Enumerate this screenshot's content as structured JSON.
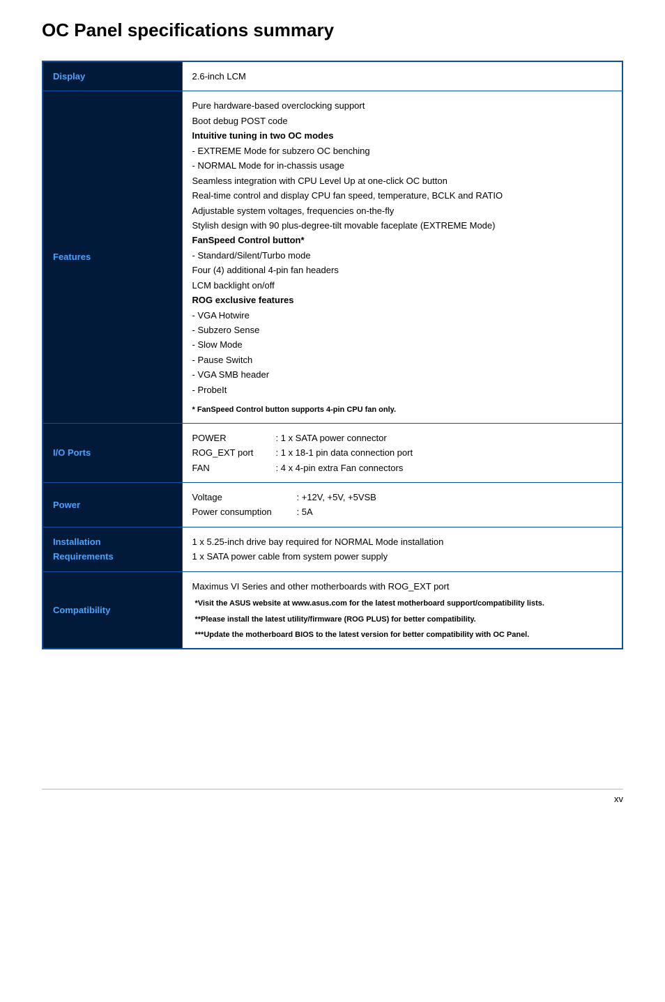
{
  "title": "OC Panel specifications summary",
  "rows": {
    "display": {
      "label": "Display",
      "value": "2.6-inch LCM"
    },
    "features": {
      "label": "Features",
      "lines": [
        {
          "text": "Pure hardware-based overclocking support"
        },
        {
          "text": "Boot debug POST code"
        },
        {
          "text": "Intuitive tuning in two OC modes",
          "bold": true
        },
        {
          "text": "- EXTREME Mode for subzero OC benching"
        },
        {
          "text": "- NORMAL Mode for in-chassis usage"
        },
        {
          "text": "Seamless integration with CPU Level Up at one-click OC button"
        },
        {
          "text": "Real-time control and display CPU fan speed, temperature, BCLK and RATIO"
        },
        {
          "text": "Adjustable system voltages, frequencies on-the-fly"
        },
        {
          "text": "Stylish design with 90 plus-degree-tilt movable faceplate (EXTREME Mode)"
        },
        {
          "text": "FanSpeed Control button*",
          "bold": true
        },
        {
          "text": "- Standard/Silent/Turbo mode"
        },
        {
          "text": "Four (4) additional 4-pin fan headers"
        },
        {
          "text": "LCM backlight on/off"
        },
        {
          "text": "ROG exclusive features",
          "bold": true
        },
        {
          "text": "- VGA Hotwire"
        },
        {
          "text": "- Subzero Sense"
        },
        {
          "text": "- Slow Mode"
        },
        {
          "text": "- Pause Switch"
        },
        {
          "text": "- VGA SMB header"
        },
        {
          "text": "- ProbeIt"
        }
      ],
      "footnote": "* FanSpeed Control button supports 4-pin CPU fan only."
    },
    "io": {
      "label": "I/O Ports",
      "ports": [
        {
          "key": "POWER",
          "val": ": 1 x SATA power connector"
        },
        {
          "key": "ROG_EXT port",
          "val": ": 1 x 18-1 pin data connection port"
        },
        {
          "key": "FAN",
          "val": ":  4 x 4-pin extra Fan connectors"
        }
      ]
    },
    "power": {
      "label": "Power",
      "ports": [
        {
          "key": "Voltage",
          "val": ": +12V, +5V, +5VSB"
        },
        {
          "key": "Power consumption",
          "val": ": 5A"
        }
      ]
    },
    "install": {
      "label": "Installation Requirements",
      "lines": [
        "1 x 5.25-inch drive bay required for NORMAL Mode installation",
        "1 x SATA power cable from system power supply"
      ]
    },
    "compat": {
      "label": "Compatibility",
      "main": "Maximus VI Series and other motherboards with ROG_EXT port",
      "footnotes": [
        "*Visit the ASUS website at www.asus.com for the latest motherboard support/compatibility lists.",
        "**Please install the latest utility/firmware (ROG PLUS) for better compatibility.",
        "***Update the motherboard BIOS to the latest version for better compatibility with OC Panel."
      ]
    }
  },
  "page_number": "xv"
}
